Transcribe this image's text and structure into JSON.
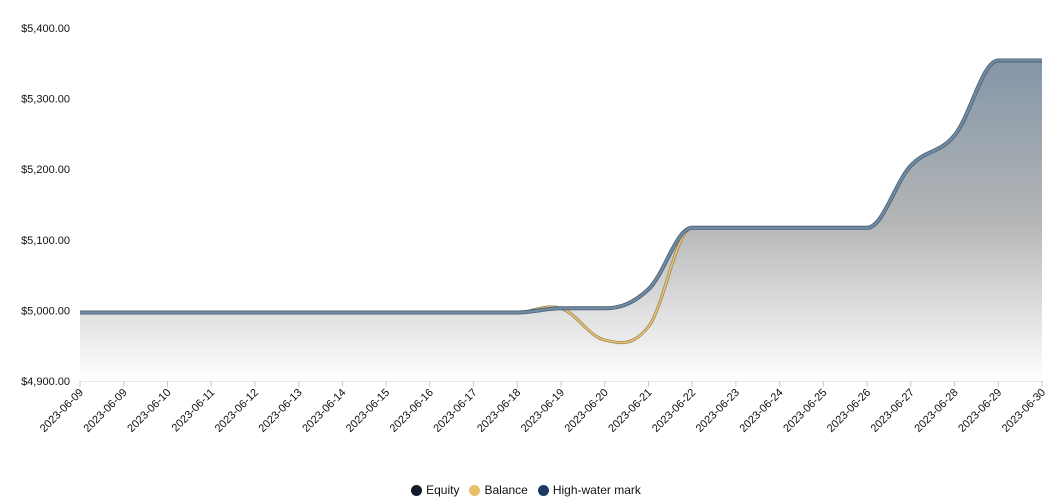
{
  "chart_data": {
    "type": "line",
    "title": "",
    "xlabel": "",
    "ylabel": "",
    "ylim": [
      4900,
      5400
    ],
    "yticks": [
      "$4,900.00",
      "$5,000.00",
      "$5,100.00",
      "$5,200.00",
      "$5,300.00",
      "$5,400.00"
    ],
    "ytick_values": [
      4900,
      5000,
      5100,
      5200,
      5300,
      5400
    ],
    "x": [
      "2023-06-09",
      "2023-06-09",
      "2023-06-10",
      "2023-06-11",
      "2023-06-12",
      "2023-06-13",
      "2023-06-14",
      "2023-06-15",
      "2023-06-16",
      "2023-06-17",
      "2023-06-18",
      "2023-06-19",
      "2023-06-20",
      "2023-06-21",
      "2023-06-22",
      "2023-06-23",
      "2023-06-24",
      "2023-06-25",
      "2023-06-26",
      "2023-06-27",
      "2023-06-28",
      "2023-06-29",
      "2023-06-30"
    ],
    "series": [
      {
        "name": "Equity",
        "color": "#6f8aa3",
        "values": [
          4997,
          4997,
          4997,
          4997,
          4997,
          4997,
          4997,
          4997,
          4997,
          4997,
          4997,
          5003,
          5003,
          5030,
          5117,
          5117,
          5117,
          5117,
          5117,
          5205,
          5248,
          5354,
          5354
        ]
      },
      {
        "name": "Balance",
        "color": "#e8bf6a",
        "values": [
          4997,
          4997,
          4997,
          4997,
          4997,
          4997,
          4997,
          4997,
          4997,
          4997,
          4997,
          5003,
          4958,
          4977,
          5117,
          5117,
          5117,
          5117,
          5117,
          5205,
          5248,
          5354,
          5354
        ]
      },
      {
        "name": "High-water mark",
        "color": "#1c3a63",
        "values": [
          4997,
          4997,
          4997,
          4997,
          4997,
          4997,
          4997,
          4997,
          4997,
          4997,
          4997,
          5003,
          5003,
          5030,
          5117,
          5117,
          5117,
          5117,
          5117,
          5205,
          5248,
          5354,
          5354
        ]
      }
    ],
    "legend": {
      "position": "bottom-center",
      "items": [
        {
          "label": "Equity",
          "color": "#151a2c"
        },
        {
          "label": "Balance",
          "color": "#e8bf6a"
        },
        {
          "label": "High-water mark",
          "color": "#1c3a63"
        }
      ]
    },
    "grid": false,
    "area_fill": {
      "top_color": "#8496a8",
      "bottom_color": "#ffffff"
    }
  }
}
